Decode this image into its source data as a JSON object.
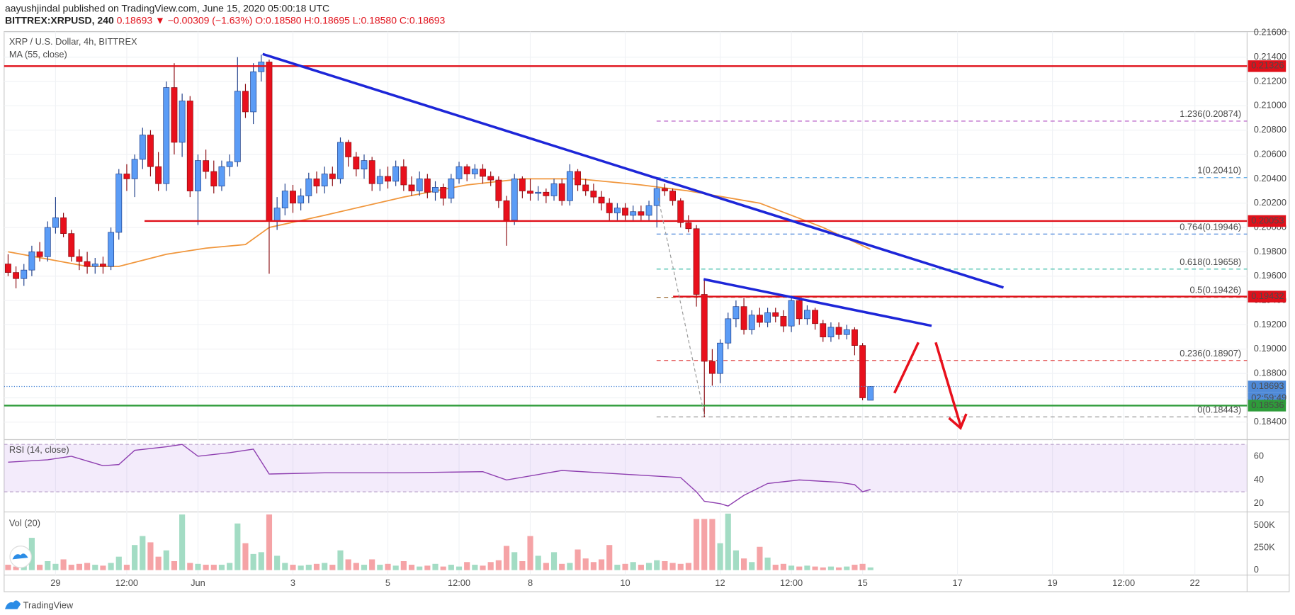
{
  "header": {
    "line1": "aayushjindal published on TradingView.com, June 15, 2020 05:00:18 UTC",
    "symbol": "BITTREX:XRPUSD, 240",
    "price": "0.18693",
    "change": "▼ −0.00309 (−1.63%)",
    "ohlc": "O:0.18580 H:0.18695 L:0.18580 C:0.18693"
  },
  "footer": {
    "brand": "TradingView"
  },
  "chart_data": {
    "type": "candlestick",
    "title": "XRP / U.S. Dollar, 4h, BITTREX",
    "ma_label": "MA (55, close)",
    "up_color": "#5b9cf6",
    "down_color": "#e8101c",
    "xlim": [
      -0.5,
      156.6
    ],
    "xticks": [
      {
        "value": 6,
        "label": "29"
      },
      {
        "value": 15,
        "label": "12:00"
      },
      {
        "value": 24,
        "label": "Jun"
      },
      {
        "value": 36,
        "label": "3"
      },
      {
        "value": 48,
        "label": "5"
      },
      {
        "value": 57,
        "label": "12:00"
      },
      {
        "value": 66,
        "label": "8"
      },
      {
        "value": 78,
        "label": "10"
      },
      {
        "value": 90,
        "label": "12"
      },
      {
        "value": 99,
        "label": "12:00"
      },
      {
        "value": 108,
        "label": "15"
      },
      {
        "value": 120,
        "label": "17"
      },
      {
        "value": 132,
        "label": "19"
      },
      {
        "value": 141,
        "label": "12:00"
      },
      {
        "value": 150,
        "label": "22"
      }
    ],
    "ylim": [
      0.1827,
      0.2161
    ],
    "yticks": [
      {
        "value": 0.184,
        "label": "0.18400"
      },
      {
        "value": 0.186,
        "label": "0.18600"
      },
      {
        "value": 0.188,
        "label": "0.18800"
      },
      {
        "value": 0.19,
        "label": "0.19000"
      },
      {
        "value": 0.192,
        "label": "0.19200"
      },
      {
        "value": 0.194,
        "label": "0.19400"
      },
      {
        "value": 0.196,
        "label": "0.19600"
      },
      {
        "value": 0.198,
        "label": "0.19800"
      },
      {
        "value": 0.2,
        "label": "0.20000"
      },
      {
        "value": 0.202,
        "label": "0.20200"
      },
      {
        "value": 0.204,
        "label": "0.20400"
      },
      {
        "value": 0.206,
        "label": "0.20600"
      },
      {
        "value": 0.208,
        "label": "0.20800"
      },
      {
        "value": 0.21,
        "label": "0.21000"
      },
      {
        "value": 0.212,
        "label": "0.21200"
      },
      {
        "value": 0.214,
        "label": "0.21400"
      },
      {
        "value": 0.216,
        "label": "0.21600"
      }
    ],
    "candles": [
      [
        0.197,
        0.1978,
        0.196,
        0.1963
      ],
      [
        0.1963,
        0.1968,
        0.195,
        0.1958
      ],
      [
        0.1958,
        0.197,
        0.1952,
        0.1965
      ],
      [
        0.1965,
        0.1985,
        0.196,
        0.198
      ],
      [
        0.198,
        0.1988,
        0.1972,
        0.1976
      ],
      [
        0.1976,
        0.2005,
        0.1972,
        0.2
      ],
      [
        0.2,
        0.2025,
        0.1995,
        0.2008
      ],
      [
        0.2008,
        0.2012,
        0.1992,
        0.1995
      ],
      [
        0.1995,
        0.1998,
        0.1972,
        0.1976
      ],
      [
        0.1976,
        0.1982,
        0.1965,
        0.1972
      ],
      [
        0.1972,
        0.198,
        0.1962,
        0.1968
      ],
      [
        0.1968,
        0.1975,
        0.1962,
        0.197
      ],
      [
        0.197,
        0.1976,
        0.1962,
        0.1968
      ],
      [
        0.1968,
        0.2,
        0.1965,
        0.1996
      ],
      [
        0.1996,
        0.2048,
        0.199,
        0.2044
      ],
      [
        0.2044,
        0.2052,
        0.203,
        0.204
      ],
      [
        0.204,
        0.206,
        0.2025,
        0.2056
      ],
      [
        0.2056,
        0.2082,
        0.2048,
        0.2076
      ],
      [
        0.2076,
        0.208,
        0.2042,
        0.205
      ],
      [
        0.205,
        0.2062,
        0.203,
        0.2036
      ],
      [
        0.2036,
        0.212,
        0.203,
        0.2115
      ],
      [
        0.2115,
        0.2135,
        0.206,
        0.207
      ],
      [
        0.207,
        0.211,
        0.2058,
        0.2104
      ],
      [
        0.2104,
        0.2108,
        0.2025,
        0.203
      ],
      [
        0.203,
        0.206,
        0.2002,
        0.2055
      ],
      [
        0.2055,
        0.2064,
        0.204,
        0.2046
      ],
      [
        0.2046,
        0.2055,
        0.2028,
        0.2034
      ],
      [
        0.2034,
        0.2055,
        0.203,
        0.205
      ],
      [
        0.205,
        0.206,
        0.2042,
        0.2054
      ],
      [
        0.2054,
        0.214,
        0.205,
        0.2112
      ],
      [
        0.2112,
        0.2118,
        0.209,
        0.2095
      ],
      [
        0.2095,
        0.2135,
        0.2085,
        0.2128
      ],
      [
        0.2128,
        0.2142,
        0.212,
        0.2136
      ],
      [
        0.2136,
        0.2138,
        0.1962,
        0.2005
      ],
      [
        0.2005,
        0.2025,
        0.1998,
        0.2016
      ],
      [
        0.2016,
        0.2036,
        0.201,
        0.203
      ],
      [
        0.203,
        0.2035,
        0.2012,
        0.202
      ],
      [
        0.202,
        0.2032,
        0.2014,
        0.2026
      ],
      [
        0.2026,
        0.2045,
        0.202,
        0.204
      ],
      [
        0.204,
        0.2046,
        0.2028,
        0.2034
      ],
      [
        0.2034,
        0.205,
        0.2028,
        0.2044
      ],
      [
        0.2044,
        0.205,
        0.2034,
        0.204
      ],
      [
        0.204,
        0.2074,
        0.2036,
        0.207
      ],
      [
        0.207,
        0.2072,
        0.205,
        0.2058
      ],
      [
        0.2058,
        0.2062,
        0.2042,
        0.2048
      ],
      [
        0.2048,
        0.206,
        0.204,
        0.2055
      ],
      [
        0.2055,
        0.2058,
        0.203,
        0.2036
      ],
      [
        0.2036,
        0.2048,
        0.203,
        0.2042
      ],
      [
        0.2042,
        0.205,
        0.2032,
        0.2038
      ],
      [
        0.2038,
        0.2055,
        0.2034,
        0.205
      ],
      [
        0.205,
        0.2056,
        0.203,
        0.2035
      ],
      [
        0.2035,
        0.2042,
        0.2026,
        0.203
      ],
      [
        0.203,
        0.2046,
        0.2026,
        0.204
      ],
      [
        0.204,
        0.2044,
        0.2024,
        0.2029
      ],
      [
        0.2029,
        0.2038,
        0.2022,
        0.2033
      ],
      [
        0.2033,
        0.2036,
        0.2018,
        0.2024
      ],
      [
        0.2024,
        0.2044,
        0.202,
        0.204
      ],
      [
        0.204,
        0.2054,
        0.2036,
        0.205
      ],
      [
        0.205,
        0.2052,
        0.2038,
        0.2044
      ],
      [
        0.2044,
        0.2052,
        0.204,
        0.2048
      ],
      [
        0.2048,
        0.2052,
        0.2036,
        0.2042
      ],
      [
        0.2042,
        0.2046,
        0.2034,
        0.2039
      ],
      [
        0.2039,
        0.2042,
        0.2016,
        0.2022
      ],
      [
        0.2022,
        0.2026,
        0.1985,
        0.2006
      ],
      [
        0.2006,
        0.2044,
        0.2002,
        0.204
      ],
      [
        0.204,
        0.2042,
        0.2024,
        0.203
      ],
      [
        0.203,
        0.204,
        0.2022,
        0.2028
      ],
      [
        0.2028,
        0.2034,
        0.2022,
        0.2029
      ],
      [
        0.2029,
        0.2032,
        0.202,
        0.2026
      ],
      [
        0.2026,
        0.204,
        0.2022,
        0.2036
      ],
      [
        0.2036,
        0.204,
        0.2018,
        0.2022
      ],
      [
        0.2022,
        0.2052,
        0.2018,
        0.2046
      ],
      [
        0.2046,
        0.2048,
        0.203,
        0.2035
      ],
      [
        0.2035,
        0.204,
        0.2026,
        0.203
      ],
      [
        0.203,
        0.2036,
        0.202,
        0.2025
      ],
      [
        0.2025,
        0.203,
        0.2014,
        0.202
      ],
      [
        0.202,
        0.2024,
        0.2005,
        0.2012
      ],
      [
        0.2012,
        0.202,
        0.2006,
        0.2016
      ],
      [
        0.2016,
        0.202,
        0.2006,
        0.201
      ],
      [
        0.201,
        0.2018,
        0.2006,
        0.2013
      ],
      [
        0.2013,
        0.2018,
        0.2006,
        0.201
      ],
      [
        0.201,
        0.2022,
        0.2006,
        0.2018
      ],
      [
        0.2018,
        0.204,
        0.2,
        0.2032
      ],
      [
        0.2032,
        0.2036,
        0.2026,
        0.203
      ],
      [
        0.203,
        0.2032,
        0.2018,
        0.2022
      ],
      [
        0.2022,
        0.2024,
        0.2,
        0.2004
      ],
      [
        0.2004,
        0.201,
        0.1996,
        0.1999
      ],
      [
        0.1999,
        0.2002,
        0.1935,
        0.1945
      ],
      [
        0.1945,
        0.1958,
        0.1844,
        0.189
      ],
      [
        0.189,
        0.19,
        0.187,
        0.188
      ],
      [
        0.188,
        0.1908,
        0.1872,
        0.1905
      ],
      [
        0.1905,
        0.193,
        0.19,
        0.1925
      ],
      [
        0.1925,
        0.194,
        0.1918,
        0.1935
      ],
      [
        0.1935,
        0.1942,
        0.1912,
        0.1916
      ],
      [
        0.1916,
        0.1932,
        0.1912,
        0.1928
      ],
      [
        0.1928,
        0.1934,
        0.1918,
        0.1922
      ],
      [
        0.1922,
        0.1934,
        0.1918,
        0.193
      ],
      [
        0.193,
        0.1934,
        0.1922,
        0.1927
      ],
      [
        0.1927,
        0.1932,
        0.1914,
        0.1919
      ],
      [
        0.1919,
        0.1944,
        0.1914,
        0.194
      ],
      [
        0.194,
        0.1942,
        0.192,
        0.1925
      ],
      [
        0.1925,
        0.1936,
        0.192,
        0.1932
      ],
      [
        0.1932,
        0.1934,
        0.1916,
        0.1921
      ],
      [
        0.1921,
        0.1924,
        0.1906,
        0.191
      ],
      [
        0.191,
        0.1922,
        0.1906,
        0.1918
      ],
      [
        0.1918,
        0.1922,
        0.1908,
        0.1912
      ],
      [
        0.1912,
        0.192,
        0.1908,
        0.1916
      ],
      [
        0.1916,
        0.1918,
        0.1895,
        0.1903
      ],
      [
        0.1903,
        0.1905,
        0.1858,
        0.186
      ],
      [
        0.1858,
        0.18695,
        0.1858,
        0.18693
      ]
    ],
    "ma": {
      "color": "#f0963c",
      "x": [
        0,
        10,
        14,
        20,
        25,
        30,
        33,
        40,
        50,
        58,
        65,
        72,
        80,
        86,
        95,
        103,
        109
      ],
      "values": [
        0.198,
        0.1968,
        0.1968,
        0.1978,
        0.1983,
        0.1986,
        0.2,
        0.201,
        0.2025,
        0.2035,
        0.204,
        0.204,
        0.2035,
        0.203,
        0.202,
        0.2,
        0.1982
      ]
    },
    "levels": [
      {
        "value": 0.21326,
        "color": "#e0101a"
      },
      {
        "value": 0.20053,
        "color": "#e0101a"
      },
      {
        "value": 0.19432,
        "color": "#e0101a"
      },
      {
        "value": 0.18693,
        "color": "#4f8ad8",
        "countdown": "02:59:49"
      },
      {
        "value": 0.18536,
        "color": "#2e9c3a"
      }
    ],
    "fibs": [
      {
        "label": "1.236(0.20874)",
        "value": 0.20874,
        "color": "#b04fc0"
      },
      {
        "label": "1(0.20410)",
        "value": 0.2041,
        "color": "#5aa9e6"
      },
      {
        "label": "0.764(0.19946)",
        "value": 0.19946,
        "color": "#3d7dd8"
      },
      {
        "label": "0.618(0.19658)",
        "value": 0.19658,
        "color": "#2cb7a0"
      },
      {
        "label": "0.5(0.19426)",
        "value": 0.19426,
        "color": "#a0703a"
      },
      {
        "label": "0.236(0.18907)",
        "value": 0.18907,
        "color": "#e04848"
      },
      {
        "label": "0(0.18443)",
        "value": 0.18443,
        "color": "#8a8a8a"
      }
    ],
    "rsi": {
      "title": "RSI (14, close)",
      "color": "#8e3fb0",
      "ylim": [
        14.4,
        72.6
      ],
      "yticks": [
        20,
        40,
        60
      ],
      "band": [
        30,
        70
      ],
      "x": [
        0,
        5,
        8,
        12,
        14,
        16,
        20,
        22,
        24,
        28,
        31,
        33,
        40,
        50,
        60,
        63,
        70,
        80,
        85,
        87,
        88,
        90,
        91,
        93,
        96,
        100,
        105,
        107,
        108,
        109
      ],
      "values": [
        55,
        57,
        60,
        52,
        53,
        65,
        68,
        70,
        60,
        63,
        66,
        45,
        46,
        46,
        47,
        40,
        48,
        44,
        42,
        30,
        22,
        20,
        18,
        27,
        37,
        40,
        38,
        36,
        30,
        32
      ]
    },
    "volume": {
      "title": "Vol (20)",
      "up_color": "#a3dcc4",
      "down_color": "#f5a3a6",
      "ylim": [
        -37000,
        630000
      ],
      "yticks": [
        0,
        {
          "value": 250000,
          "label": "250K"
        },
        {
          "value": 500000,
          "label": "500K"
        }
      ],
      "values": [
        60000,
        40000,
        80000,
        360000,
        60000,
        100000,
        70000,
        120000,
        60000,
        70000,
        80000,
        60000,
        50000,
        80000,
        150000,
        60000,
        280000,
        380000,
        310000,
        150000,
        220000,
        100000,
        620000,
        80000,
        70000,
        60000,
        60000,
        60000,
        80000,
        520000,
        300000,
        180000,
        200000,
        620000,
        160000,
        80000,
        60000,
        50000,
        60000,
        70000,
        80000,
        60000,
        220000,
        120000,
        80000,
        60000,
        120000,
        60000,
        70000,
        50000,
        100000,
        60000,
        40000,
        50000,
        70000,
        40000,
        60000,
        40000,
        90000,
        60000,
        50000,
        90000,
        110000,
        270000,
        200000,
        100000,
        380000,
        160000,
        80000,
        200000,
        70000,
        80000,
        230000,
        130000,
        90000,
        120000,
        280000,
        60000,
        70000,
        90000,
        60000,
        80000,
        110000,
        100000,
        80000,
        70000,
        80000,
        570000,
        570000,
        570000,
        300000,
        630000,
        220000,
        130000,
        90000,
        260000,
        140000,
        60000,
        70000,
        50000,
        40000,
        50000,
        40000,
        30000,
        40000,
        30000,
        40000,
        60000,
        70000,
        30000
      ]
    }
  }
}
